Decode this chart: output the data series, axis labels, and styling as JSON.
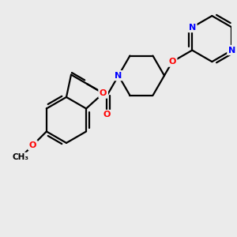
{
  "bg_color": "#ebebeb",
  "bond_color": "#000000",
  "bond_width": 1.6,
  "atom_colors": {
    "N": "#0000ff",
    "O": "#ff0000",
    "C": "#000000"
  },
  "figsize": [
    3.0,
    3.0
  ],
  "dpi": 100
}
